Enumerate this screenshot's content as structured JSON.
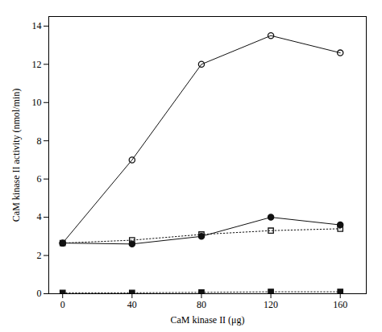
{
  "chart_data": {
    "type": "line",
    "xlabel": "CaM kinase II (μg)",
    "ylabel": "CaM kinase II activity (nmol/min)",
    "x": [
      0,
      40,
      80,
      120,
      160
    ],
    "series": [
      {
        "values": [
          2.65,
          7.0,
          12.0,
          13.5,
          12.6
        ],
        "color": "#111111",
        "marker": "open_circle",
        "line_style": "solid"
      },
      {
        "values": [
          2.65,
          2.6,
          3.0,
          4.0,
          3.6
        ],
        "color": "#111111",
        "marker": "filled_circle",
        "line_style": "solid"
      },
      {
        "values": [
          2.65,
          2.8,
          3.1,
          3.3,
          3.4
        ],
        "color": "#111111",
        "marker": "open_square",
        "line_style": "dotted"
      },
      {
        "values": [
          0.05,
          0.05,
          0.07,
          0.1,
          0.1
        ],
        "color": "#111111",
        "marker": "filled_square",
        "line_style": "dotted"
      }
    ],
    "xlim": [
      -8,
      175
    ],
    "xticks": [
      0,
      40,
      80,
      120,
      160
    ],
    "ylim": [
      0,
      14.5
    ],
    "yticks": [
      0,
      2,
      4,
      6,
      8,
      10,
      12,
      14
    ],
    "grid": false
  }
}
